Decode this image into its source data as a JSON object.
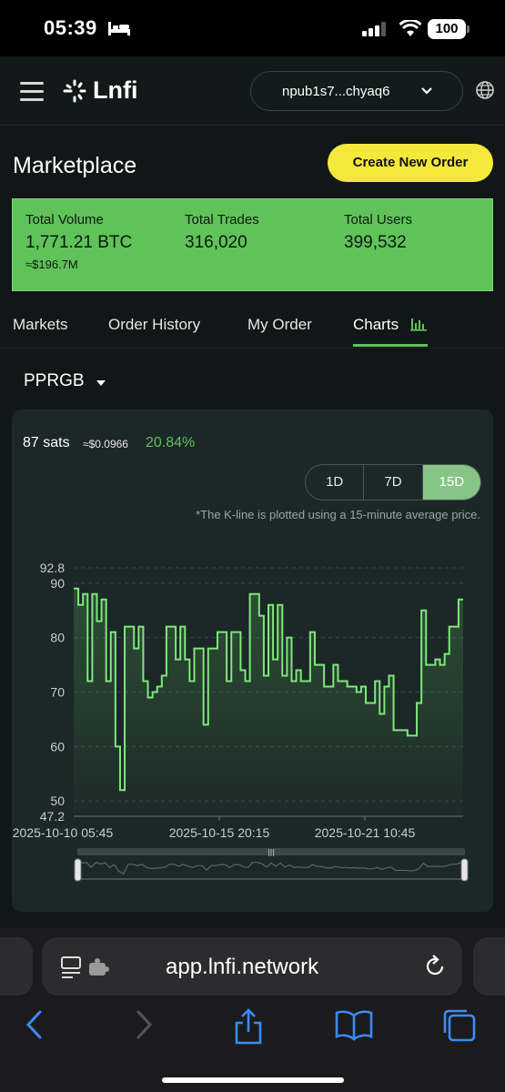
{
  "status": {
    "time": "05:39",
    "battery": "100"
  },
  "header": {
    "logo": "Lnfi",
    "wallet": "npub1s7...chyaq6"
  },
  "page": {
    "title": "Marketplace",
    "create_button": "Create New Order"
  },
  "stats": {
    "volume_label": "Total Volume",
    "volume_value": "1,771.21 BTC",
    "volume_usd": "≈$196.7M",
    "trades_label": "Total Trades",
    "trades_value": "316,020",
    "users_label": "Total Users",
    "users_value": "399,532"
  },
  "tabs": [
    "Markets",
    "Order History",
    "My Order",
    "Charts"
  ],
  "pair": "PPRGB",
  "price": {
    "sats": "87 sats",
    "usd": "≈$0.0966",
    "change": "20.84%"
  },
  "ranges": [
    "1D",
    "7D",
    "15D"
  ],
  "active_range": "15D",
  "note": "*The K-line is plotted using a 15-minute average price.",
  "browser": {
    "url": "app.lnfi.network"
  },
  "colors": {
    "accent_green": "#5fc35a",
    "button_yellow": "#f4e83a",
    "background": "#101716"
  },
  "chart_data": {
    "type": "line",
    "y_ticks": [
      "92.8",
      "90",
      "80",
      "70",
      "60",
      "50",
      "47.2"
    ],
    "ylim": [
      47.2,
      92.8
    ],
    "x_ticks": [
      "2025-10-10 05:45",
      "2025-10-15 20:15",
      "2025-10-21 10:45"
    ],
    "grid": true,
    "series": [
      {
        "values": [
          89,
          86,
          88,
          72,
          88,
          83,
          87,
          72,
          81,
          60,
          52,
          82,
          82,
          78,
          82,
          72,
          69,
          70,
          71,
          73,
          82,
          82,
          76,
          82,
          76,
          72,
          78,
          78,
          64,
          78,
          78,
          81,
          81,
          72,
          81,
          81,
          74,
          72,
          88,
          88,
          84,
          73,
          86,
          76,
          86,
          73,
          80,
          72,
          74,
          72,
          72,
          81,
          75,
          75,
          71,
          71,
          75,
          72,
          72,
          71,
          71,
          70,
          71,
          68,
          68,
          72,
          66,
          71,
          73,
          63,
          63,
          63,
          62,
          62,
          68,
          85,
          75,
          75,
          76,
          75,
          77,
          82,
          82,
          87,
          87
        ]
      }
    ]
  }
}
